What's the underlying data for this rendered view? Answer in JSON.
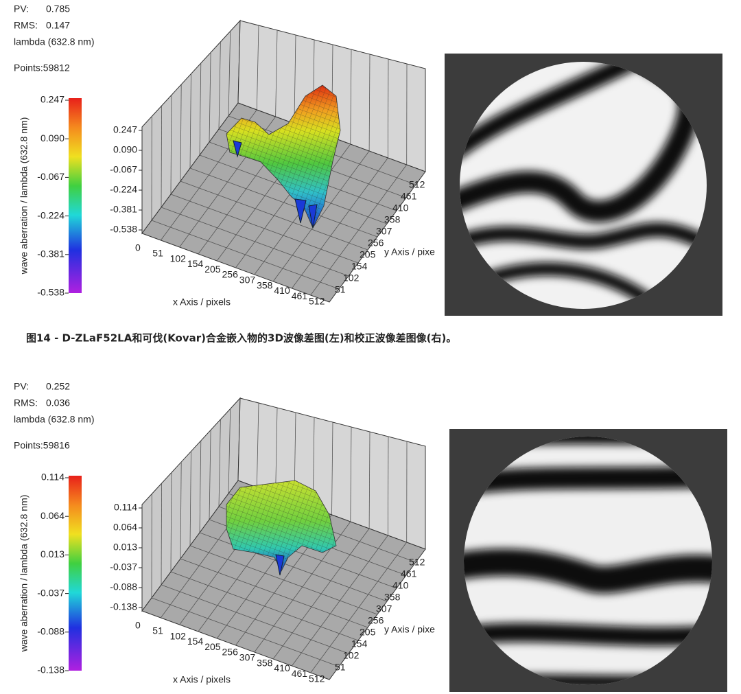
{
  "panels": [
    {
      "stats": [
        {
          "label": "PV:",
          "value": "0.785"
        },
        {
          "label": "RMS:",
          "value": "0.147"
        }
      ],
      "unit": "lambda (632.8 nm)",
      "points": "Points:59812",
      "colorbar": {
        "label": "wave aberration / lambda (632.8 nm)",
        "ticks": [
          "0.247",
          "0.090",
          "-0.067",
          "-0.224",
          "-0.381",
          "-0.538"
        ]
      },
      "z_ticks": [
        "0.247",
        "0.090",
        "-0.067",
        "-0.224",
        "-0.381",
        "-0.538"
      ],
      "x_axis": {
        "label": "x Axis / pixels",
        "ticks": [
          "0",
          "51",
          "102",
          "154",
          "205",
          "256",
          "307",
          "358",
          "410",
          "461",
          "512"
        ]
      },
      "y_axis": {
        "label": "y Axis / pixe",
        "ticks": [
          "51",
          "102",
          "154",
          "205",
          "256",
          "307",
          "358",
          "410",
          "461",
          "512"
        ]
      }
    },
    {
      "stats": [
        {
          "label": "PV:",
          "value": "0.252"
        },
        {
          "label": "RMS:",
          "value": "0.036"
        }
      ],
      "unit": "lambda (632.8 nm)",
      "points": "Points:59816",
      "colorbar": {
        "label": "wave aberration / lambda (632.8 nm)",
        "ticks": [
          "0.114",
          "0.064",
          "0.013",
          "-0.037",
          "-0.088",
          "-0.138"
        ]
      },
      "z_ticks": [
        "0.114",
        "0.064",
        "0.013",
        "-0.037",
        "-0.088",
        "-0.138"
      ],
      "x_axis": {
        "label": "x Axis / pixels",
        "ticks": [
          "0",
          "51",
          "102",
          "154",
          "205",
          "256",
          "307",
          "358",
          "410",
          "461",
          "512"
        ]
      },
      "y_axis": {
        "label": "y Axis / pixe",
        "ticks": [
          "51",
          "102",
          "154",
          "205",
          "256",
          "307",
          "358",
          "410",
          "461",
          "512"
        ]
      }
    }
  ],
  "caption": "图14 - D-ZLaF52LA和可伐(Kovar)合金嵌入物的3D波像差图(左)和校正波像差图像(右)。"
}
